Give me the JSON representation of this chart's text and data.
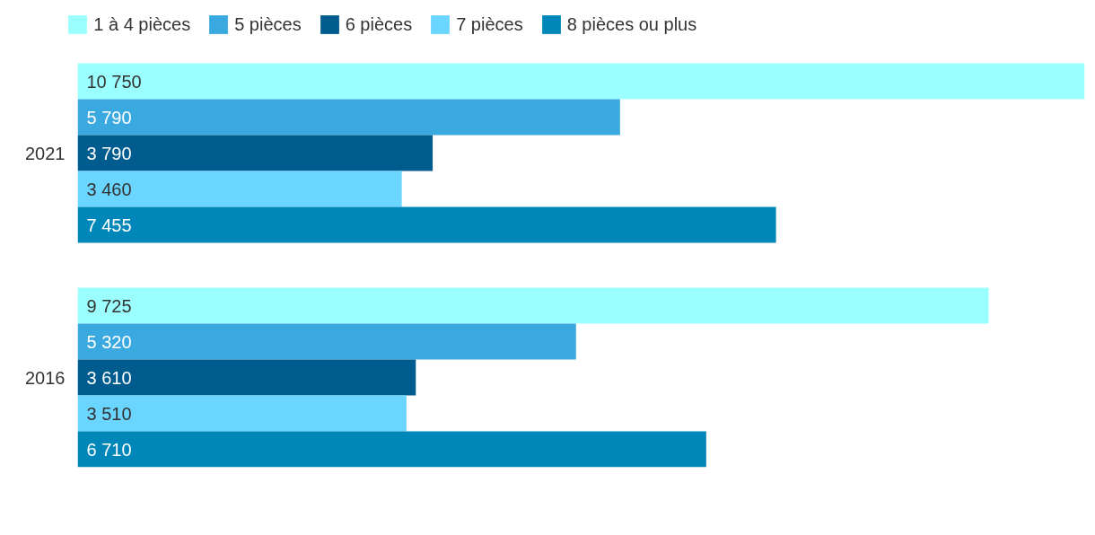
{
  "chart_data": {
    "type": "bar",
    "orientation": "horizontal",
    "categories": [
      "2021",
      "2016"
    ],
    "series": [
      {
        "name": "1 à 4 pièces",
        "color": "#9cffff",
        "values": [
          10750,
          9725
        ]
      },
      {
        "name": "5 pièces",
        "color": "#3aa9e0",
        "values": [
          5790,
          5320
        ]
      },
      {
        "name": "6 pièces",
        "color": "#005c8e",
        "values": [
          3790,
          3610
        ]
      },
      {
        "name": "7 pièces",
        "color": "#6ad5ff",
        "values": [
          3460,
          3510
        ]
      },
      {
        "name": "8 pièces ou plus",
        "color": "#0087ba",
        "values": [
          7455,
          6710
        ]
      }
    ],
    "data_labels": true,
    "legend": "top left",
    "grid": false
  }
}
